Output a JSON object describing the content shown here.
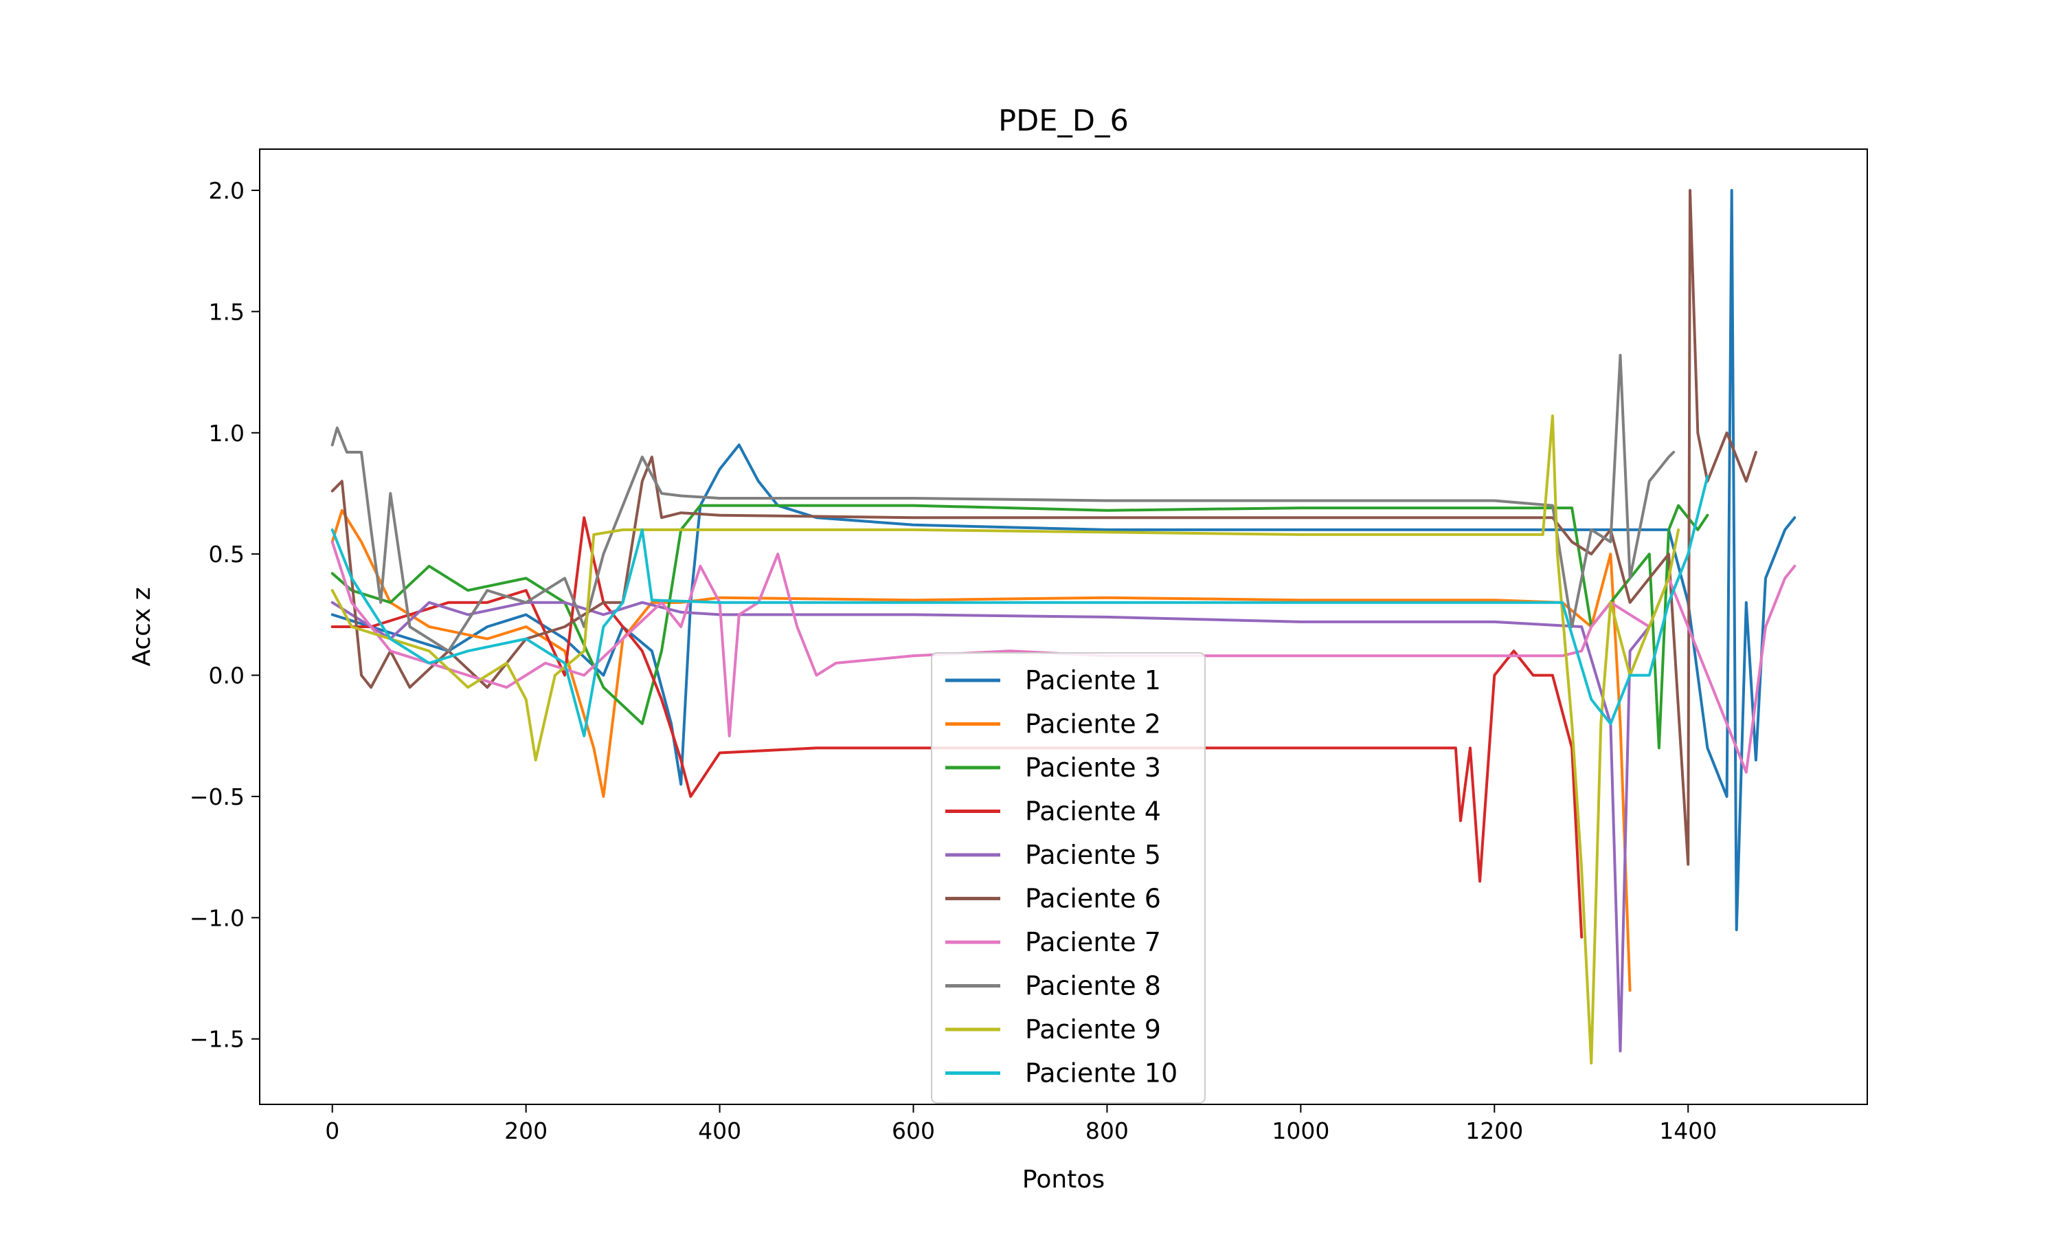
{
  "chart_data": {
    "type": "line",
    "title": "PDE_D_6",
    "xlabel": "Pontos",
    "ylabel": "Accx z",
    "xlim": [
      -75,
      1585
    ],
    "ylim": [
      -1.77,
      2.17
    ],
    "xticks": [
      0,
      200,
      400,
      600,
      800,
      1000,
      1200,
      1400
    ],
    "xtick_labels": [
      "0",
      "200",
      "400",
      "600",
      "800",
      "1000",
      "1200",
      "1400"
    ],
    "yticks": [
      -1.5,
      -1.0,
      -0.5,
      0.0,
      0.5,
      1.0,
      1.5,
      2.0
    ],
    "ytick_labels": [
      "−1.5",
      "−1.0",
      "−0.5",
      "0.0",
      "0.5",
      "1.0",
      "1.5",
      "2.0"
    ],
    "grid": false,
    "legend_position": "bottom-center",
    "series": [
      {
        "name": "Paciente 1",
        "color": "#1f77b4",
        "points": [
          [
            0,
            0.25
          ],
          [
            40,
            0.2
          ],
          [
            80,
            0.15
          ],
          [
            120,
            0.1
          ],
          [
            160,
            0.2
          ],
          [
            200,
            0.25
          ],
          [
            240,
            0.15
          ],
          [
            280,
            0.0
          ],
          [
            300,
            0.2
          ],
          [
            330,
            0.1
          ],
          [
            350,
            -0.2
          ],
          [
            360,
            -0.45
          ],
          [
            370,
            0.3
          ],
          [
            380,
            0.7
          ],
          [
            400,
            0.85
          ],
          [
            420,
            0.95
          ],
          [
            440,
            0.8
          ],
          [
            460,
            0.7
          ],
          [
            500,
            0.65
          ],
          [
            600,
            0.62
          ],
          [
            800,
            0.6
          ],
          [
            1000,
            0.6
          ],
          [
            1200,
            0.6
          ],
          [
            1380,
            0.6
          ],
          [
            1400,
            0.3
          ],
          [
            1420,
            -0.3
          ],
          [
            1440,
            -0.5
          ],
          [
            1445,
            2.0
          ],
          [
            1450,
            -1.05
          ],
          [
            1460,
            0.3
          ],
          [
            1470,
            -0.35
          ],
          [
            1480,
            0.4
          ],
          [
            1500,
            0.6
          ],
          [
            1510,
            0.65
          ]
        ]
      },
      {
        "name": "Paciente 2",
        "color": "#ff7f0e",
        "points": [
          [
            0,
            0.55
          ],
          [
            10,
            0.68
          ],
          [
            30,
            0.55
          ],
          [
            60,
            0.3
          ],
          [
            100,
            0.2
          ],
          [
            160,
            0.15
          ],
          [
            200,
            0.2
          ],
          [
            240,
            0.1
          ],
          [
            270,
            -0.3
          ],
          [
            280,
            -0.5
          ],
          [
            300,
            0.15
          ],
          [
            330,
            0.3
          ],
          [
            360,
            0.3
          ],
          [
            400,
            0.32
          ],
          [
            600,
            0.31
          ],
          [
            800,
            0.32
          ],
          [
            1000,
            0.31
          ],
          [
            1200,
            0.31
          ],
          [
            1270,
            0.3
          ],
          [
            1300,
            0.2
          ],
          [
            1320,
            0.5
          ],
          [
            1330,
            -0.2
          ],
          [
            1340,
            -1.3
          ]
        ]
      },
      {
        "name": "Paciente 3",
        "color": "#2ca02c",
        "points": [
          [
            0,
            0.42
          ],
          [
            20,
            0.35
          ],
          [
            60,
            0.3
          ],
          [
            100,
            0.45
          ],
          [
            140,
            0.35
          ],
          [
            200,
            0.4
          ],
          [
            240,
            0.3
          ],
          [
            280,
            -0.05
          ],
          [
            320,
            -0.2
          ],
          [
            340,
            0.1
          ],
          [
            360,
            0.6
          ],
          [
            380,
            0.7
          ],
          [
            400,
            0.7
          ],
          [
            600,
            0.7
          ],
          [
            800,
            0.68
          ],
          [
            1000,
            0.69
          ],
          [
            1200,
            0.69
          ],
          [
            1280,
            0.69
          ],
          [
            1300,
            0.2
          ],
          [
            1340,
            0.4
          ],
          [
            1360,
            0.5
          ],
          [
            1370,
            -0.3
          ],
          [
            1380,
            0.6
          ],
          [
            1390,
            0.7
          ],
          [
            1410,
            0.6
          ],
          [
            1420,
            0.66
          ]
        ]
      },
      {
        "name": "Paciente 4",
        "color": "#d62728",
        "points": [
          [
            0,
            0.2
          ],
          [
            40,
            0.2
          ],
          [
            80,
            0.25
          ],
          [
            120,
            0.3
          ],
          [
            160,
            0.3
          ],
          [
            200,
            0.35
          ],
          [
            240,
            0.0
          ],
          [
            260,
            0.65
          ],
          [
            280,
            0.3
          ],
          [
            300,
            0.2
          ],
          [
            320,
            0.1
          ],
          [
            340,
            -0.1
          ],
          [
            360,
            -0.35
          ],
          [
            370,
            -0.5
          ],
          [
            400,
            -0.32
          ],
          [
            500,
            -0.3
          ],
          [
            600,
            -0.3
          ],
          [
            800,
            -0.3
          ],
          [
            1000,
            -0.3
          ],
          [
            1160,
            -0.3
          ],
          [
            1165,
            -0.6
          ],
          [
            1175,
            -0.3
          ],
          [
            1185,
            -0.85
          ],
          [
            1200,
            0.0
          ],
          [
            1220,
            0.1
          ],
          [
            1240,
            0.0
          ],
          [
            1260,
            0.0
          ],
          [
            1280,
            -0.3
          ],
          [
            1290,
            -1.08
          ]
        ]
      },
      {
        "name": "Paciente 5",
        "color": "#9467bd",
        "points": [
          [
            0,
            0.3
          ],
          [
            20,
            0.25
          ],
          [
            60,
            0.15
          ],
          [
            100,
            0.3
          ],
          [
            140,
            0.25
          ],
          [
            200,
            0.3
          ],
          [
            240,
            0.3
          ],
          [
            280,
            0.25
          ],
          [
            320,
            0.3
          ],
          [
            360,
            0.26
          ],
          [
            400,
            0.25
          ],
          [
            600,
            0.25
          ],
          [
            800,
            0.24
          ],
          [
            1000,
            0.22
          ],
          [
            1200,
            0.22
          ],
          [
            1290,
            0.2
          ],
          [
            1320,
            -0.2
          ],
          [
            1330,
            -1.55
          ],
          [
            1340,
            0.1
          ],
          [
            1360,
            0.2
          ]
        ]
      },
      {
        "name": "Paciente 6",
        "color": "#8c564b",
        "points": [
          [
            0,
            0.76
          ],
          [
            10,
            0.8
          ],
          [
            20,
            0.4
          ],
          [
            30,
            0.0
          ],
          [
            40,
            -0.05
          ],
          [
            60,
            0.1
          ],
          [
            80,
            -0.05
          ],
          [
            120,
            0.1
          ],
          [
            160,
            -0.05
          ],
          [
            200,
            0.15
          ],
          [
            240,
            0.2
          ],
          [
            280,
            0.3
          ],
          [
            300,
            0.3
          ],
          [
            320,
            0.8
          ],
          [
            330,
            0.9
          ],
          [
            340,
            0.65
          ],
          [
            360,
            0.67
          ],
          [
            400,
            0.66
          ],
          [
            600,
            0.65
          ],
          [
            800,
            0.65
          ],
          [
            1000,
            0.65
          ],
          [
            1200,
            0.65
          ],
          [
            1260,
            0.65
          ],
          [
            1280,
            0.55
          ],
          [
            1300,
            0.5
          ],
          [
            1320,
            0.6
          ],
          [
            1340,
            0.3
          ],
          [
            1360,
            0.4
          ],
          [
            1380,
            0.5
          ],
          [
            1400,
            -0.78
          ],
          [
            1402,
            2.0
          ],
          [
            1410,
            1.0
          ],
          [
            1420,
            0.8
          ],
          [
            1440,
            1.0
          ],
          [
            1460,
            0.8
          ],
          [
            1470,
            0.92
          ]
        ]
      },
      {
        "name": "Paciente 7",
        "color": "#e377c2",
        "points": [
          [
            0,
            0.55
          ],
          [
            20,
            0.3
          ],
          [
            60,
            0.1
          ],
          [
            100,
            0.05
          ],
          [
            140,
            0.0
          ],
          [
            180,
            -0.05
          ],
          [
            220,
            0.05
          ],
          [
            260,
            0.0
          ],
          [
            300,
            0.15
          ],
          [
            340,
            0.3
          ],
          [
            360,
            0.2
          ],
          [
            380,
            0.45
          ],
          [
            400,
            0.3
          ],
          [
            410,
            -0.25
          ],
          [
            420,
            0.25
          ],
          [
            440,
            0.3
          ],
          [
            460,
            0.5
          ],
          [
            480,
            0.2
          ],
          [
            500,
            0.0
          ],
          [
            520,
            0.05
          ],
          [
            600,
            0.08
          ],
          [
            700,
            0.1
          ],
          [
            800,
            0.08
          ],
          [
            1000,
            0.08
          ],
          [
            1200,
            0.08
          ],
          [
            1270,
            0.08
          ],
          [
            1290,
            0.1
          ],
          [
            1300,
            0.2
          ],
          [
            1320,
            0.3
          ],
          [
            1340,
            0.25
          ],
          [
            1360,
            0.2
          ],
          [
            1380,
            0.4
          ],
          [
            1400,
            0.2
          ],
          [
            1420,
            0.0
          ],
          [
            1440,
            -0.2
          ],
          [
            1460,
            -0.4
          ],
          [
            1480,
            0.2
          ],
          [
            1500,
            0.4
          ],
          [
            1510,
            0.45
          ]
        ]
      },
      {
        "name": "Paciente 8",
        "color": "#7f7f7f",
        "points": [
          [
            0,
            0.95
          ],
          [
            5,
            1.02
          ],
          [
            15,
            0.92
          ],
          [
            30,
            0.92
          ],
          [
            40,
            0.6
          ],
          [
            50,
            0.3
          ],
          [
            60,
            0.75
          ],
          [
            80,
            0.2
          ],
          [
            120,
            0.1
          ],
          [
            160,
            0.35
          ],
          [
            200,
            0.3
          ],
          [
            240,
            0.4
          ],
          [
            260,
            0.2
          ],
          [
            280,
            0.5
          ],
          [
            300,
            0.7
          ],
          [
            320,
            0.9
          ],
          [
            340,
            0.75
          ],
          [
            360,
            0.74
          ],
          [
            400,
            0.73
          ],
          [
            600,
            0.73
          ],
          [
            800,
            0.72
          ],
          [
            900,
            0.72
          ],
          [
            1000,
            0.72
          ],
          [
            1200,
            0.72
          ],
          [
            1260,
            0.7
          ],
          [
            1280,
            0.2
          ],
          [
            1300,
            0.6
          ],
          [
            1320,
            0.55
          ],
          [
            1330,
            1.32
          ],
          [
            1340,
            0.4
          ],
          [
            1360,
            0.8
          ],
          [
            1380,
            0.9
          ],
          [
            1385,
            0.92
          ]
        ]
      },
      {
        "name": "Paciente 9",
        "color": "#bcbd22",
        "points": [
          [
            0,
            0.35
          ],
          [
            20,
            0.2
          ],
          [
            60,
            0.15
          ],
          [
            100,
            0.1
          ],
          [
            140,
            -0.05
          ],
          [
            180,
            0.05
          ],
          [
            200,
            -0.1
          ],
          [
            210,
            -0.35
          ],
          [
            230,
            0.0
          ],
          [
            260,
            0.1
          ],
          [
            270,
            0.58
          ],
          [
            300,
            0.6
          ],
          [
            400,
            0.6
          ],
          [
            600,
            0.6
          ],
          [
            800,
            0.59
          ],
          [
            1000,
            0.58
          ],
          [
            1200,
            0.58
          ],
          [
            1250,
            0.58
          ],
          [
            1260,
            1.07
          ],
          [
            1265,
            0.5
          ],
          [
            1280,
            -0.2
          ],
          [
            1290,
            -0.8
          ],
          [
            1300,
            -1.6
          ],
          [
            1310,
            -0.2
          ],
          [
            1320,
            0.3
          ],
          [
            1340,
            0.0
          ],
          [
            1360,
            0.2
          ],
          [
            1380,
            0.4
          ],
          [
            1390,
            0.6
          ]
        ]
      },
      {
        "name": "Paciente 10",
        "color": "#17becf",
        "points": [
          [
            0,
            0.6
          ],
          [
            20,
            0.4
          ],
          [
            60,
            0.15
          ],
          [
            100,
            0.05
          ],
          [
            140,
            0.1
          ],
          [
            200,
            0.15
          ],
          [
            240,
            0.05
          ],
          [
            260,
            -0.25
          ],
          [
            280,
            0.2
          ],
          [
            300,
            0.3
          ],
          [
            320,
            0.6
          ],
          [
            330,
            0.31
          ],
          [
            400,
            0.3
          ],
          [
            600,
            0.3
          ],
          [
            800,
            0.3
          ],
          [
            1000,
            0.3
          ],
          [
            1200,
            0.3
          ],
          [
            1270,
            0.3
          ],
          [
            1300,
            -0.1
          ],
          [
            1320,
            -0.2
          ],
          [
            1340,
            0.0
          ],
          [
            1360,
            0.0
          ],
          [
            1380,
            0.3
          ],
          [
            1400,
            0.5
          ],
          [
            1420,
            0.82
          ]
        ]
      }
    ]
  }
}
